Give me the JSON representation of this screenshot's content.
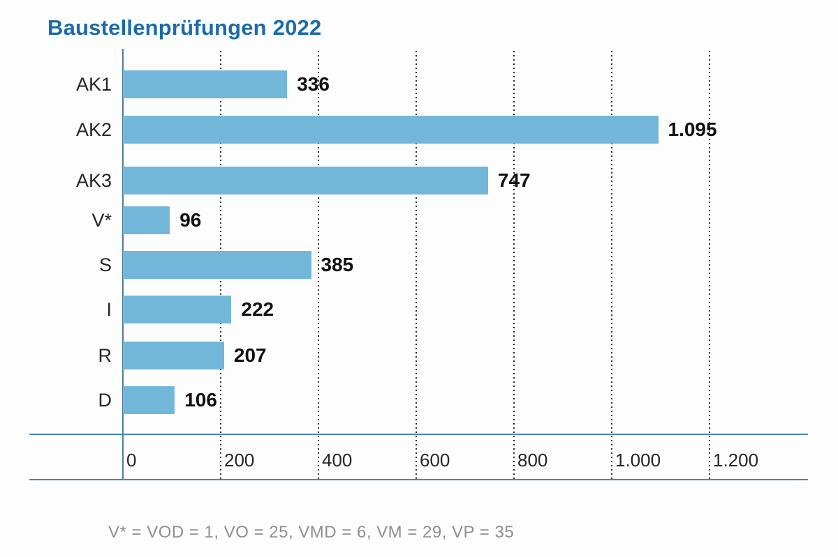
{
  "title": "Baustellenprüfungen 2022",
  "footnote": "V* = VOD = 1, VO = 25, VMD = 6, VM = 29, VP = 35",
  "colors": {
    "title": "#1c6ba8",
    "bar": "#72b7da",
    "rules": "#4886b5",
    "axis": "#4e7e9b",
    "grid_dots": "#2d2d2d",
    "value_text": "#111111",
    "category_text": "#262626",
    "footnote_text": "#8f8f8f",
    "background": "#fdfdfd"
  },
  "chart_data": {
    "type": "bar",
    "orientation": "horizontal",
    "title": "Baustellenprüfungen 2022",
    "categories": [
      "AK1",
      "AK2",
      "AK3",
      "V*",
      "S",
      "I",
      "R",
      "D"
    ],
    "values": [
      336,
      1095,
      747,
      96,
      385,
      222,
      207,
      106
    ],
    "value_labels": [
      "336",
      "1.095",
      "747",
      "96",
      "385",
      "222",
      "207",
      "106"
    ],
    "x_ticks": [
      {
        "value": 0,
        "label": "0"
      },
      {
        "value": 200,
        "label": "200"
      },
      {
        "value": 400,
        "label": "400"
      },
      {
        "value": 600,
        "label": "600"
      },
      {
        "value": 800,
        "label": "800"
      },
      {
        "value": 1000,
        "label": "1.000"
      },
      {
        "value": 1200,
        "label": "1.200"
      }
    ],
    "xlim": [
      0,
      1400
    ],
    "xlabel": "",
    "ylabel": "",
    "grid": "vertical-dotted",
    "legend": "none",
    "bar_color": "#72b7da",
    "annotation": "V* = VOD = 1, VO = 25, VMD = 6, VM = 29, VP = 35",
    "v_star_breakdown": {
      "VOD": 1,
      "VO": 25,
      "VMD": 6,
      "VM": 29,
      "VP": 35
    }
  }
}
